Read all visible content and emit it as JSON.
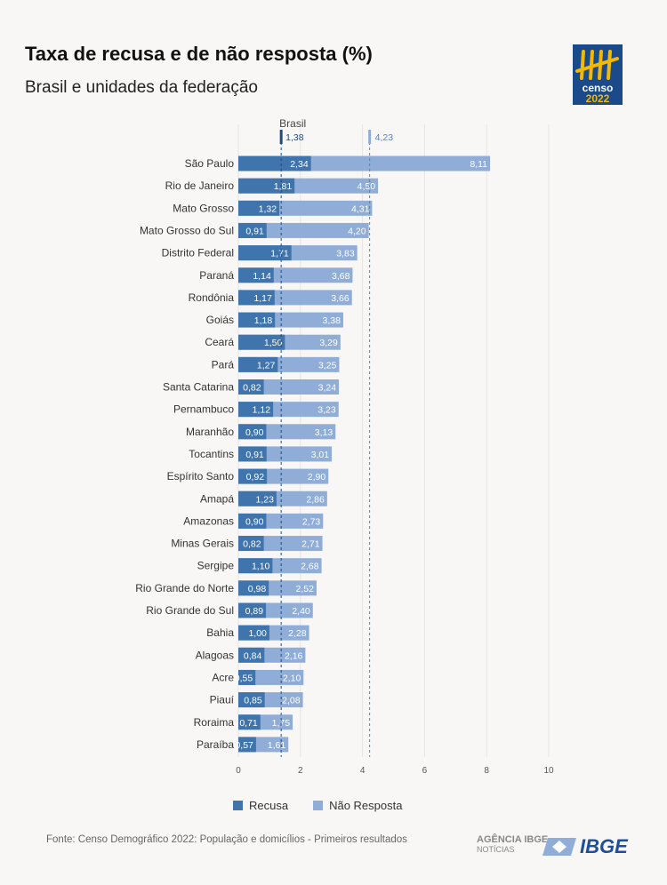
{
  "header": {
    "title": "Taxa de recusa e de não resposta (%)",
    "subtitle": "Brasil e unidades da federação"
  },
  "logo": {
    "line1": "censo",
    "line2": "2022"
  },
  "colors": {
    "recusa": "#3f74ad",
    "nao_resposta": "#8fadd6",
    "grid": "#e4e4e4"
  },
  "chart_data": {
    "type": "bar",
    "orientation": "horizontal",
    "overlapping": true,
    "categories": [
      "São Paulo",
      "Rio de Janeiro",
      "Mato Grosso",
      "Mato Grosso do Sul",
      "Distrito Federal",
      "Paraná",
      "Rondônia",
      "Goiás",
      "Ceará",
      "Pará",
      "Santa Catarina",
      "Pernambuco",
      "Maranhão",
      "Tocantins",
      "Espírito Santo",
      "Amapá",
      "Amazonas",
      "Minas Gerais",
      "Sergipe",
      "Rio Grande do Norte",
      "Rio Grande do Sul",
      "Bahia",
      "Alagoas",
      "Acre",
      "Piauí",
      "Roraima",
      "Paraíba"
    ],
    "series": [
      {
        "name": "Recusa",
        "values": [
          2.34,
          1.81,
          1.32,
          0.91,
          1.71,
          1.14,
          1.17,
          1.18,
          1.5,
          1.27,
          0.82,
          1.12,
          0.9,
          0.91,
          0.92,
          1.23,
          0.9,
          0.82,
          1.1,
          0.98,
          0.89,
          1.0,
          0.84,
          0.55,
          0.85,
          0.71,
          0.57
        ]
      },
      {
        "name": "Não Resposta",
        "values": [
          8.11,
          4.5,
          4.31,
          4.2,
          3.83,
          3.68,
          3.66,
          3.38,
          3.29,
          3.25,
          3.24,
          3.23,
          3.13,
          3.01,
          2.9,
          2.86,
          2.73,
          2.71,
          2.68,
          2.52,
          2.4,
          2.28,
          2.16,
          2.1,
          2.08,
          1.75,
          1.61
        ]
      }
    ],
    "reference": {
      "label": "Brasil",
      "recusa": 1.38,
      "nao_resposta": 4.23
    },
    "xticks": [
      0,
      2,
      4,
      6,
      8,
      10
    ],
    "xlim": [
      0,
      10
    ],
    "grid": true,
    "legend": "bottom"
  },
  "legend": {
    "recusa": "Recusa",
    "nao_resposta": "Não Resposta"
  },
  "footer": {
    "source": "Fonte: Censo Demográfico 2022: População e domicílios - Primeiros resultados",
    "agencia": "AGÊNCIA IBGE",
    "noticias": "NOTÍCIAS",
    "ibge": "IBGE"
  }
}
